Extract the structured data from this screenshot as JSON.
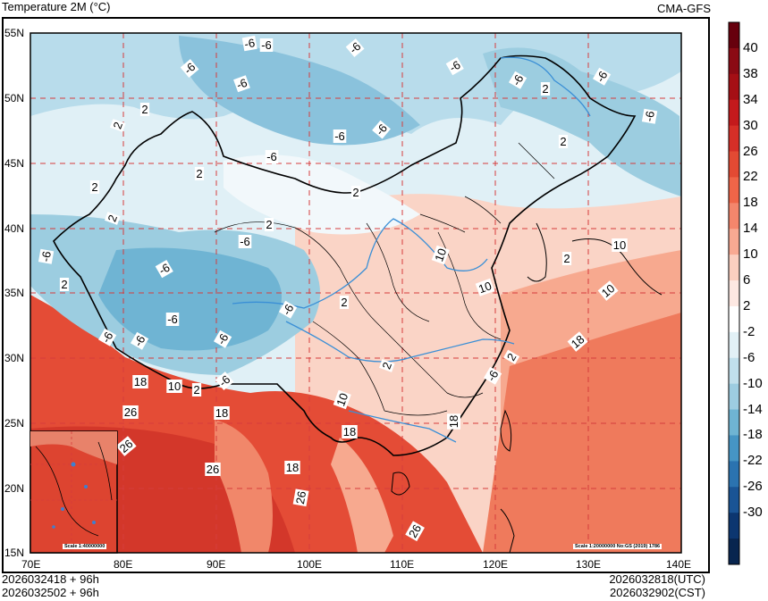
{
  "header": {
    "title": "Temperature  2M (°C)",
    "source": "CMA-GFS"
  },
  "map": {
    "lat_labels": [
      "55N",
      "50N",
      "45N",
      "40N",
      "35N",
      "30N",
      "25N",
      "20N",
      "15N"
    ],
    "lon_labels": [
      "70E",
      "80E",
      "90E",
      "100E",
      "110E",
      "120E",
      "130E",
      "140E"
    ],
    "contour_labels": [
      {
        "text": "-6"
      },
      {
        "text": "-6"
      },
      {
        "text": "-6"
      },
      {
        "text": "-6"
      },
      {
        "text": "-6"
      },
      {
        "text": "-6"
      },
      {
        "text": "-6"
      },
      {
        "text": "-6"
      },
      {
        "text": "-6"
      },
      {
        "text": "2"
      },
      {
        "text": "2"
      },
      {
        "text": "2"
      },
      {
        "text": "2"
      },
      {
        "text": "2"
      },
      {
        "text": "2"
      },
      {
        "text": "-6"
      },
      {
        "text": "-6"
      },
      {
        "text": "-6"
      },
      {
        "text": "2"
      },
      {
        "text": "-6"
      },
      {
        "text": "-6"
      },
      {
        "text": "-6"
      },
      {
        "text": "2"
      },
      {
        "text": "-6"
      },
      {
        "text": "2"
      },
      {
        "text": "-6"
      },
      {
        "text": "-6"
      },
      {
        "text": "10"
      },
      {
        "text": "10"
      },
      {
        "text": "2"
      },
      {
        "text": "18"
      },
      {
        "text": "10"
      },
      {
        "text": "2"
      },
      {
        "text": "-6"
      },
      {
        "text": "26"
      },
      {
        "text": "18"
      },
      {
        "text": "10"
      },
      {
        "text": "26"
      },
      {
        "text": "26"
      },
      {
        "text": "18"
      },
      {
        "text": "26"
      },
      {
        "text": "18"
      },
      {
        "text": "18"
      },
      {
        "text": "2"
      },
      {
        "text": "10"
      },
      {
        "text": "2"
      },
      {
        "text": "18"
      },
      {
        "text": "10"
      },
      {
        "text": "26"
      },
      {
        "text": "2"
      },
      {
        "text": "-6"
      },
      {
        "text": "-6"
      },
      {
        "text": "2"
      },
      {
        "text": "-6"
      }
    ],
    "inset_scale": "Scale 1:40000000",
    "main_scale": "Scale 1:20000000 No:GS (2019) 1786"
  },
  "colorbar": {
    "labels": [
      "40",
      "38",
      "34",
      "30",
      "26",
      "22",
      "18",
      "14",
      "10",
      "6",
      "2",
      "-2",
      "-6",
      "-10",
      "-14",
      "-18",
      "-22",
      "-26",
      "-30"
    ],
    "colors": [
      "#67000d",
      "#8b0a14",
      "#a50f15",
      "#c41a1c",
      "#d62f27",
      "#e34a33",
      "#ef6548",
      "#f4866c",
      "#f8a992",
      "#fbcfc0",
      "#fde8e2",
      "#ffffff",
      "#e2f1f6",
      "#c1e0ec",
      "#9dcde1",
      "#6fb4d3",
      "#4695c4",
      "#2b73b0",
      "#1a5495",
      "#0c3670",
      "#08254f"
    ]
  },
  "footer": {
    "run_utc_left": "2026032418 + 96h",
    "run_cst_left": "2026032502 + 96h",
    "valid_utc": "2026032818(UTC)",
    "valid_cst": "2026032902(CST)"
  }
}
